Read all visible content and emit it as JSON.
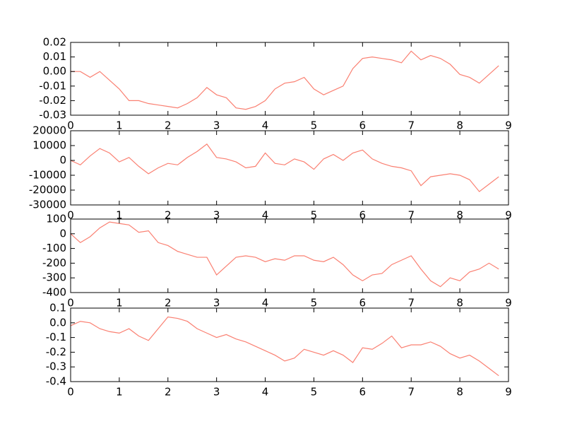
{
  "chart_data": [
    {
      "type": "line",
      "xlim": [
        0,
        9
      ],
      "xticks": [
        0,
        1,
        2,
        3,
        4,
        5,
        6,
        7,
        8,
        9
      ],
      "ylim": [
        -0.03,
        0.02
      ],
      "yticks": [
        -0.03,
        -0.02,
        -0.01,
        {
          "value": 0,
          "label": "0.00"
        },
        0.01,
        0.02
      ],
      "x": [
        0,
        0.2,
        0.4,
        0.6,
        0.8,
        1,
        1.2,
        1.4,
        1.6,
        1.8,
        2,
        2.2,
        2.4,
        2.6,
        2.8,
        3,
        3.2,
        3.4,
        3.6,
        3.8,
        4,
        4.2,
        4.4,
        4.6,
        4.8,
        5,
        5.2,
        5.4,
        5.6,
        5.8,
        6,
        6.2,
        6.4,
        6.6,
        6.8,
        7,
        7.2,
        7.4,
        7.6,
        7.8,
        8,
        8.2,
        8.4,
        8.6,
        8.8
      ],
      "series": [
        {
          "color": "#fa8072",
          "values": [
            0,
            0,
            -0.004,
            0,
            -0.006,
            -0.012,
            -0.02,
            -0.02,
            -0.022,
            -0.023,
            -0.024,
            -0.025,
            -0.022,
            -0.018,
            -0.011,
            -0.016,
            -0.018,
            -0.025,
            -0.026,
            -0.024,
            -0.02,
            -0.012,
            -0.008,
            -0.007,
            -0.004,
            -0.012,
            -0.016,
            -0.013,
            -0.01,
            0.002,
            0.009,
            0.01,
            0.009,
            0.008,
            0.006,
            0.014,
            0.008,
            0.011,
            0.009,
            0.005,
            -0.002,
            -0.004,
            -0.008,
            -0.002,
            0.004
          ]
        }
      ]
    },
    {
      "type": "line",
      "xlim": [
        0,
        9
      ],
      "xticks": [
        0,
        1,
        2,
        3,
        4,
        5,
        6,
        7,
        8,
        9
      ],
      "ylim": [
        -30000,
        20000
      ],
      "yticks": [
        -30000,
        -20000,
        -10000,
        0,
        10000,
        20000
      ],
      "x": [
        0,
        0.2,
        0.4,
        0.6,
        0.8,
        1,
        1.2,
        1.4,
        1.6,
        1.8,
        2,
        2.2,
        2.4,
        2.6,
        2.8,
        3,
        3.2,
        3.4,
        3.6,
        3.8,
        4,
        4.2,
        4.4,
        4.6,
        4.8,
        5,
        5.2,
        5.4,
        5.6,
        5.8,
        6,
        6.2,
        6.4,
        6.6,
        6.8,
        7,
        7.2,
        7.4,
        7.6,
        7.8,
        8,
        8.2,
        8.4,
        8.6,
        8.8
      ],
      "series": [
        {
          "color": "#fa8072",
          "values": [
            0,
            -3000,
            3000,
            8000,
            5000,
            -1000,
            2000,
            -4000,
            -9000,
            -5000,
            -2000,
            -3000,
            2000,
            6000,
            11000,
            2000,
            1000,
            -1000,
            -5000,
            -4000,
            5000,
            -2000,
            -3000,
            1000,
            -1000,
            -6000,
            1000,
            4000,
            0,
            5000,
            7000,
            1000,
            -2000,
            -4000,
            -5000,
            -7000,
            -17000,
            -11000,
            -10000,
            -9000,
            -10000,
            -13000,
            -21000,
            -16000,
            -11000
          ]
        }
      ]
    },
    {
      "type": "line",
      "xlim": [
        0,
        9
      ],
      "xticks": [
        0,
        1,
        2,
        3,
        4,
        5,
        6,
        7,
        8,
        9
      ],
      "ylim": [
        -400,
        100
      ],
      "yticks": [
        -400,
        -300,
        -200,
        -100,
        0,
        100
      ],
      "x": [
        0,
        0.2,
        0.4,
        0.6,
        0.8,
        1,
        1.2,
        1.4,
        1.6,
        1.8,
        2,
        2.2,
        2.4,
        2.6,
        2.8,
        3,
        3.2,
        3.4,
        3.6,
        3.8,
        4,
        4.2,
        4.4,
        4.6,
        4.8,
        5,
        5.2,
        5.4,
        5.6,
        5.8,
        6,
        6.2,
        6.4,
        6.6,
        6.8,
        7,
        7.2,
        7.4,
        7.6,
        7.8,
        8,
        8.2,
        8.4,
        8.6,
        8.8
      ],
      "series": [
        {
          "color": "#fa8072",
          "values": [
            0,
            -60,
            -20,
            40,
            80,
            70,
            60,
            10,
            20,
            -60,
            -80,
            -120,
            -140,
            -160,
            -160,
            -280,
            -220,
            -160,
            -150,
            -160,
            -190,
            -170,
            -180,
            -150,
            -150,
            -180,
            -190,
            -160,
            -210,
            -280,
            -320,
            -280,
            -270,
            -210,
            -180,
            -150,
            -240,
            -320,
            -360,
            -300,
            -320,
            -260,
            -240,
            -200,
            -240
          ]
        }
      ]
    },
    {
      "type": "line",
      "xlim": [
        0,
        9
      ],
      "xticks": [
        0,
        1,
        2,
        3,
        4,
        5,
        6,
        7,
        8,
        9
      ],
      "ylim": [
        -0.4,
        0.1
      ],
      "yticks": [
        -0.4,
        -0.3,
        -0.2,
        -0.1,
        {
          "value": 0,
          "label": "0.0"
        },
        0.1
      ],
      "x": [
        0,
        0.2,
        0.4,
        0.6,
        0.8,
        1,
        1.2,
        1.4,
        1.6,
        1.8,
        2,
        2.2,
        2.4,
        2.6,
        2.8,
        3,
        3.2,
        3.4,
        3.6,
        3.8,
        4,
        4.2,
        4.4,
        4.6,
        4.8,
        5,
        5.2,
        5.4,
        5.6,
        5.8,
        6,
        6.2,
        6.4,
        6.6,
        6.8,
        7,
        7.2,
        7.4,
        7.6,
        7.8,
        8,
        8.2,
        8.4,
        8.6,
        8.8
      ],
      "series": [
        {
          "color": "#fa8072",
          "values": [
            -0.02,
            0.01,
            0,
            -0.04,
            -0.06,
            -0.07,
            -0.04,
            -0.09,
            -0.12,
            -0.04,
            0.04,
            0.03,
            0.01,
            -0.04,
            -0.07,
            -0.1,
            -0.08,
            -0.11,
            -0.13,
            -0.16,
            -0.19,
            -0.22,
            -0.26,
            -0.24,
            -0.18,
            -0.2,
            -0.22,
            -0.19,
            -0.22,
            -0.27,
            -0.17,
            -0.18,
            -0.14,
            -0.09,
            -0.17,
            -0.15,
            -0.15,
            -0.13,
            -0.16,
            -0.21,
            -0.24,
            -0.22,
            -0.26,
            -0.31,
            -0.36
          ]
        }
      ]
    }
  ]
}
